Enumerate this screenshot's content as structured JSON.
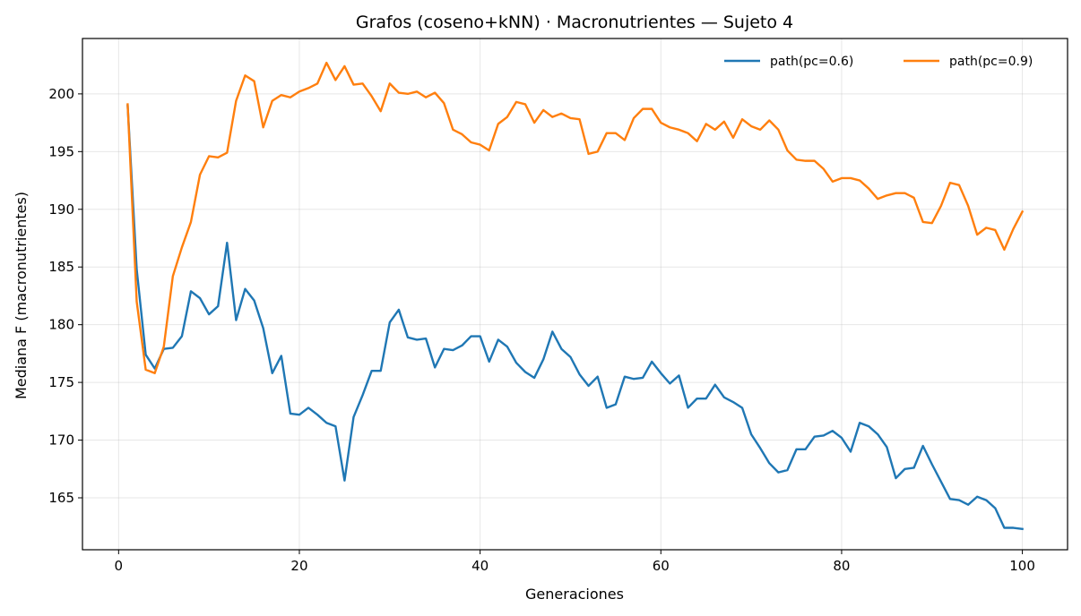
{
  "chart_data": {
    "type": "line",
    "title": "Grafos (coseno+kNN) · Macronutrientes — Sujeto 4",
    "xlabel": "Generaciones",
    "ylabel": "Mediana F (macronutrientes)",
    "xlim": [
      -4,
      105
    ],
    "ylim": [
      160.5,
      204.8
    ],
    "xticks": [
      0,
      20,
      40,
      60,
      80,
      100
    ],
    "yticks": [
      165,
      170,
      175,
      180,
      185,
      190,
      195,
      200
    ],
    "grid": true,
    "legend_position": "top-right",
    "legend_columns": 2,
    "series": [
      {
        "name": "path(pc=0.6)",
        "color": "#1f77b4",
        "x": [
          1,
          2,
          3,
          4,
          5,
          6,
          7,
          8,
          9,
          10,
          11,
          12,
          13,
          14,
          15,
          16,
          17,
          18,
          19,
          20,
          21,
          22,
          23,
          24,
          25,
          26,
          27,
          28,
          29,
          30,
          31,
          32,
          33,
          34,
          35,
          36,
          37,
          38,
          39,
          40,
          41,
          42,
          43,
          44,
          45,
          46,
          47,
          48,
          49,
          50,
          51,
          52,
          53,
          54,
          55,
          56,
          57,
          58,
          59,
          60,
          61,
          62,
          63,
          64,
          65,
          66,
          67,
          68,
          69,
          70,
          71,
          72,
          73,
          74,
          75,
          76,
          77,
          78,
          79,
          80,
          81,
          82,
          83,
          84,
          85,
          86,
          87,
          88,
          89,
          90,
          91,
          92,
          93,
          94,
          95,
          96,
          97,
          98,
          99,
          100
        ],
        "values": [
          199.0,
          184.8,
          177.4,
          176.2,
          177.9,
          178.0,
          179.0,
          182.9,
          182.3,
          180.9,
          181.6,
          187.1,
          180.4,
          183.1,
          182.1,
          179.7,
          175.8,
          177.3,
          172.3,
          172.2,
          172.8,
          172.2,
          171.5,
          171.2,
          166.5,
          172.0,
          173.9,
          176.0,
          176.0,
          180.2,
          181.3,
          178.9,
          178.7,
          178.8,
          176.3,
          177.9,
          177.8,
          178.2,
          179.0,
          179.0,
          176.8,
          178.7,
          178.1,
          176.7,
          175.9,
          175.4,
          177.0,
          179.4,
          177.9,
          177.2,
          175.7,
          174.7,
          175.5,
          172.8,
          173.1,
          175.5,
          175.3,
          175.4,
          176.8,
          175.8,
          174.9,
          175.6,
          172.8,
          173.6,
          173.6,
          174.8,
          173.7,
          173.3,
          172.8,
          170.5,
          169.3,
          168.0,
          167.2,
          167.4,
          169.2,
          169.2,
          170.3,
          170.4,
          170.8,
          170.2,
          169.0,
          171.5,
          171.2,
          170.5,
          169.4,
          166.7,
          167.5,
          167.6,
          169.5,
          167.9,
          166.4,
          164.9,
          164.8,
          164.4,
          165.1,
          164.8,
          164.1,
          162.4,
          162.4,
          162.3
        ]
      },
      {
        "name": "path(pc=0.9)",
        "color": "#ff7f0e",
        "x": [
          1,
          2,
          3,
          4,
          5,
          6,
          7,
          8,
          9,
          10,
          11,
          12,
          13,
          14,
          15,
          16,
          17,
          18,
          19,
          20,
          21,
          22,
          23,
          24,
          25,
          26,
          27,
          28,
          29,
          30,
          31,
          32,
          33,
          34,
          35,
          36,
          37,
          38,
          39,
          40,
          41,
          42,
          43,
          44,
          45,
          46,
          47,
          48,
          49,
          50,
          51,
          52,
          53,
          54,
          55,
          56,
          57,
          58,
          59,
          60,
          61,
          62,
          63,
          64,
          65,
          66,
          67,
          68,
          69,
          70,
          71,
          72,
          73,
          74,
          75,
          76,
          77,
          78,
          79,
          80,
          81,
          82,
          83,
          84,
          85,
          86,
          87,
          88,
          89,
          90,
          91,
          92,
          93,
          94,
          95,
          96,
          97,
          98,
          99,
          100
        ],
        "values": [
          199.1,
          182.0,
          176.1,
          175.8,
          178.1,
          184.2,
          186.7,
          188.9,
          193.0,
          194.6,
          194.5,
          194.9,
          199.4,
          201.6,
          201.1,
          197.1,
          199.4,
          199.9,
          199.7,
          200.2,
          200.5,
          200.9,
          202.7,
          201.2,
          202.4,
          200.8,
          200.9,
          199.8,
          198.5,
          200.9,
          200.1,
          200.0,
          200.2,
          199.7,
          200.1,
          199.2,
          196.9,
          196.5,
          195.8,
          195.6,
          195.1,
          197.4,
          198.0,
          199.3,
          199.1,
          197.5,
          198.6,
          198.0,
          198.3,
          197.9,
          197.8,
          194.8,
          195.0,
          196.6,
          196.6,
          196.0,
          197.9,
          198.7,
          198.7,
          197.5,
          197.1,
          196.9,
          196.6,
          195.9,
          197.4,
          196.9,
          197.6,
          196.2,
          197.8,
          197.2,
          196.9,
          197.7,
          196.9,
          195.1,
          194.3,
          194.2,
          194.2,
          193.5,
          192.4,
          192.7,
          192.7,
          192.5,
          191.8,
          190.9,
          191.2,
          191.4,
          191.4,
          191.0,
          188.9,
          188.8,
          190.3,
          192.3,
          192.1,
          190.3,
          187.8,
          188.4,
          188.2,
          186.5,
          188.3,
          189.8
        ]
      }
    ]
  }
}
